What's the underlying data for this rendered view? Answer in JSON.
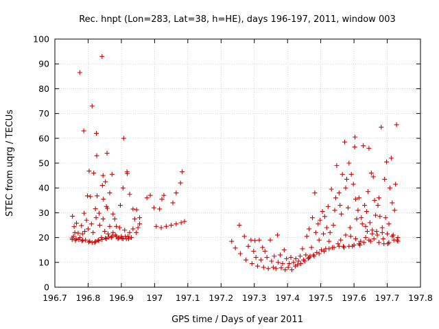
{
  "chart_data": {
    "type": "scatter",
    "title": "Rec. hnpt (Lon=283, Lat=38, h=HE), days 196-197, 2011, window 003",
    "xlabel": "GPS time / Days of year 2011",
    "ylabel": "STEC from uqrg / TECUs",
    "xlim": [
      196.7,
      197.8
    ],
    "ylim": [
      0,
      100
    ],
    "xticks": [
      "196.7",
      "196.8",
      "196.9",
      "197",
      "197.1",
      "197.2",
      "197.3",
      "197.4",
      "197.5",
      "197.6",
      "197.7",
      "197.8"
    ],
    "yticks": [
      "0",
      "10",
      "20",
      "30",
      "40",
      "50",
      "60",
      "70",
      "80",
      "90",
      "100"
    ],
    "grid": true,
    "marker": "+",
    "color": "#cc0000",
    "series": [
      {
        "points": [
          [
            196.753,
            28.6
          ],
          [
            196.758,
            24.4
          ],
          [
            196.765,
            25.8
          ],
          [
            196.775,
            86.5
          ],
          [
            196.783,
            21.5
          ],
          [
            196.787,
            63.0
          ],
          [
            196.788,
            29.8
          ],
          [
            196.798,
            36.8
          ],
          [
            196.803,
            46.8
          ],
          [
            196.807,
            36.5
          ],
          [
            196.812,
            73.0
          ],
          [
            196.817,
            46.0
          ],
          [
            196.822,
            31.6
          ],
          [
            196.825,
            62.0
          ],
          [
            196.826,
            53.0
          ],
          [
            196.827,
            36.8
          ],
          [
            196.833,
            29.8
          ],
          [
            196.842,
            93.0
          ],
          [
            196.843,
            41.0
          ],
          [
            196.845,
            45.0
          ],
          [
            196.846,
            35.5
          ],
          [
            196.852,
            42.5
          ],
          [
            196.855,
            32.5
          ],
          [
            196.857,
            54.0
          ],
          [
            196.858,
            31.8
          ],
          [
            196.865,
            38.0
          ],
          [
            196.872,
            45.5
          ],
          [
            196.875,
            29.5
          ],
          [
            196.885,
            24.5
          ],
          [
            196.897,
            33.0
          ],
          [
            196.905,
            40.0
          ],
          [
            196.907,
            60.0
          ],
          [
            196.917,
            46.5
          ],
          [
            196.918,
            45.8
          ],
          [
            196.925,
            37.5
          ],
          [
            196.935,
            31.5
          ],
          [
            196.946,
            31.2
          ],
          [
            196.955,
            28.0
          ],
          [
            196.977,
            36.0
          ],
          [
            196.987,
            37.0
          ],
          [
            196.998,
            32.0
          ],
          [
            197.015,
            31.5
          ],
          [
            197.022,
            35.5
          ],
          [
            197.028,
            37.0
          ],
          [
            197.055,
            34.0
          ],
          [
            197.065,
            38.0
          ],
          [
            197.078,
            42.0
          ],
          [
            197.083,
            46.5
          ],
          [
            196.752,
            19.2
          ],
          [
            196.756,
            20.5
          ],
          [
            196.76,
            22.0
          ],
          [
            196.764,
            19.5
          ],
          [
            196.77,
            21.8
          ],
          [
            196.775,
            20.0
          ],
          [
            196.78,
            24.8
          ],
          [
            196.784,
            19.0
          ],
          [
            196.79,
            22.5
          ],
          [
            196.795,
            27.0
          ],
          [
            196.8,
            23.5
          ],
          [
            196.805,
            18.5
          ],
          [
            196.81,
            25.5
          ],
          [
            196.815,
            22.0
          ],
          [
            196.82,
            18.0
          ],
          [
            196.824,
            28.0
          ],
          [
            196.83,
            19.0
          ],
          [
            196.835,
            25.0
          ],
          [
            196.84,
            20.0
          ],
          [
            196.845,
            27.5
          ],
          [
            196.85,
            22.5
          ],
          [
            196.855,
            19.5
          ],
          [
            196.86,
            21.5
          ],
          [
            196.865,
            24.5
          ],
          [
            196.87,
            20.0
          ],
          [
            196.875,
            22.0
          ],
          [
            196.88,
            27.5
          ],
          [
            196.885,
            20.5
          ],
          [
            196.89,
            19.5
          ],
          [
            196.895,
            24.0
          ],
          [
            196.9,
            20.5
          ],
          [
            196.905,
            19.5
          ],
          [
            196.91,
            23.0
          ],
          [
            196.915,
            19.5
          ],
          [
            196.92,
            20.5
          ],
          [
            196.925,
            22.0
          ],
          [
            196.93,
            20.0
          ],
          [
            196.935,
            23.5
          ],
          [
            196.94,
            27.5
          ],
          [
            196.945,
            22.0
          ],
          [
            196.95,
            24.0
          ],
          [
            196.955,
            25.5
          ],
          [
            197.005,
            24.5
          ],
          [
            197.02,
            24.0
          ],
          [
            197.035,
            24.5
          ],
          [
            197.05,
            25.0
          ],
          [
            197.065,
            25.5
          ],
          [
            197.08,
            26.0
          ],
          [
            197.09,
            26.5
          ],
          [
            196.752,
            19.8
          ],
          [
            196.762,
            18.8
          ],
          [
            196.772,
            19.2
          ],
          [
            196.782,
            18.6
          ],
          [
            196.792,
            19.0
          ],
          [
            196.802,
            18.2
          ],
          [
            196.812,
            18.0
          ],
          [
            196.822,
            18.4
          ],
          [
            196.832,
            18.7
          ],
          [
            196.842,
            19.2
          ],
          [
            196.852,
            19.8
          ],
          [
            196.862,
            20.2
          ],
          [
            196.872,
            20.6
          ],
          [
            196.882,
            21.0
          ],
          [
            196.892,
            20.0
          ],
          [
            196.902,
            19.7
          ],
          [
            196.912,
            20.4
          ],
          [
            196.922,
            19.5
          ],
          [
            197.232,
            18.5
          ],
          [
            197.243,
            15.8
          ],
          [
            197.255,
            25.0
          ],
          [
            197.258,
            13.5
          ],
          [
            197.27,
            20.5
          ],
          [
            197.275,
            11.0
          ],
          [
            197.282,
            16.5
          ],
          [
            197.29,
            19.0
          ],
          [
            197.293,
            9.5
          ],
          [
            197.298,
            14.5
          ],
          [
            197.302,
            18.8
          ],
          [
            197.305,
            12.0
          ],
          [
            197.31,
            8.5
          ],
          [
            197.315,
            19.0
          ],
          [
            197.32,
            11.0
          ],
          [
            197.325,
            16.0
          ],
          [
            197.328,
            8.0
          ],
          [
            197.332,
            14.5
          ],
          [
            197.338,
            12.0
          ],
          [
            197.342,
            7.5
          ],
          [
            197.348,
            19.0
          ],
          [
            197.352,
            10.5
          ],
          [
            197.357,
            8.0
          ],
          [
            197.36,
            12.5
          ],
          [
            197.365,
            7.5
          ],
          [
            197.37,
            21.0
          ],
          [
            197.372,
            10.0
          ],
          [
            197.378,
            13.0
          ],
          [
            197.381,
            7.8
          ],
          [
            197.385,
            9.5
          ],
          [
            197.39,
            15.0
          ],
          [
            197.393,
            7.0
          ],
          [
            197.397,
            11.5
          ],
          [
            197.402,
            8.0
          ],
          [
            197.405,
            9.5
          ],
          [
            197.41,
            12.0
          ],
          [
            197.413,
            7.0
          ],
          [
            197.418,
            10.0
          ],
          [
            197.423,
            8.5
          ],
          [
            197.425,
            11.5
          ],
          [
            197.43,
            9.0
          ],
          [
            197.433,
            10.5
          ],
          [
            197.438,
            12.5
          ],
          [
            197.44,
            9.5
          ],
          [
            197.445,
            15.5
          ],
          [
            197.448,
            11.0
          ],
          [
            197.452,
            10.5
          ],
          [
            197.455,
            13.0
          ],
          [
            197.458,
            20.5
          ],
          [
            197.462,
            11.5
          ],
          [
            197.465,
            23.5
          ],
          [
            197.468,
            12.5
          ],
          [
            197.472,
            16.0
          ],
          [
            197.475,
            28.0
          ],
          [
            197.478,
            13.0
          ],
          [
            197.482,
            38.0
          ],
          [
            197.485,
            22.0
          ],
          [
            197.488,
            14.0
          ],
          [
            197.492,
            25.5
          ],
          [
            197.495,
            19.0
          ],
          [
            197.498,
            27.0
          ],
          [
            197.502,
            15.0
          ],
          [
            197.505,
            30.5
          ],
          [
            197.508,
            21.5
          ],
          [
            197.512,
            28.5
          ],
          [
            197.515,
            15.5
          ],
          [
            197.518,
            24.0
          ],
          [
            197.522,
            32.5
          ],
          [
            197.525,
            18.5
          ],
          [
            197.528,
            22.0
          ],
          [
            197.532,
            39.5
          ],
          [
            197.535,
            16.0
          ],
          [
            197.538,
            25.0
          ],
          [
            197.542,
            31.0
          ],
          [
            197.545,
            36.0
          ],
          [
            197.548,
            49.0
          ],
          [
            197.552,
            17.5
          ],
          [
            197.555,
            38.0
          ],
          [
            197.558,
            33.0
          ],
          [
            197.562,
            29.5
          ],
          [
            197.565,
            45.5
          ],
          [
            197.568,
            16.5
          ],
          [
            197.572,
            58.5
          ],
          [
            197.575,
            40.0
          ],
          [
            197.578,
            43.5
          ],
          [
            197.582,
            32.0
          ],
          [
            197.585,
            50.0
          ],
          [
            197.588,
            24.0
          ],
          [
            197.592,
            45.5
          ],
          [
            197.595,
            16.5
          ],
          [
            197.598,
            41.5
          ],
          [
            197.602,
            56.5
          ],
          [
            197.603,
            60.5
          ],
          [
            197.605,
            35.5
          ],
          [
            197.608,
            27.5
          ],
          [
            197.612,
            31.0
          ],
          [
            197.615,
            36.0
          ],
          [
            197.618,
            17.0
          ],
          [
            197.622,
            28.0
          ],
          [
            197.625,
            25.5
          ],
          [
            197.628,
            57.0
          ],
          [
            197.632,
            33.0
          ],
          [
            197.635,
            24.5
          ],
          [
            197.638,
            30.5
          ],
          [
            197.642,
            38.5
          ],
          [
            197.645,
            56.0
          ],
          [
            197.648,
            26.0
          ],
          [
            197.652,
            46.0
          ],
          [
            197.655,
            21.5
          ],
          [
            197.658,
            44.5
          ],
          [
            197.662,
            35.0
          ],
          [
            197.665,
            29.0
          ],
          [
            197.668,
            22.5
          ],
          [
            197.672,
            33.0
          ],
          [
            197.675,
            36.0
          ],
          [
            197.678,
            28.5
          ],
          [
            197.682,
            64.5
          ],
          [
            197.685,
            24.0
          ],
          [
            197.688,
            19.5
          ],
          [
            197.692,
            43.5
          ],
          [
            197.695,
            28.0
          ],
          [
            197.698,
            50.5
          ],
          [
            197.702,
            17.5
          ],
          [
            197.705,
            25.5
          ],
          [
            197.708,
            40.0
          ],
          [
            197.712,
            52.0
          ],
          [
            197.715,
            34.0
          ],
          [
            197.718,
            21.0
          ],
          [
            197.722,
            31.0
          ],
          [
            197.725,
            41.5
          ],
          [
            197.728,
            65.5
          ],
          [
            197.732,
            18.5
          ],
          [
            197.465,
            12.0
          ],
          [
            197.48,
            12.5
          ],
          [
            197.495,
            13.5
          ],
          [
            197.51,
            14.5
          ],
          [
            197.525,
            15.5
          ],
          [
            197.54,
            16.0
          ],
          [
            197.555,
            16.5
          ],
          [
            197.57,
            16.0
          ],
          [
            197.585,
            16.5
          ],
          [
            197.6,
            17.0
          ],
          [
            197.615,
            17.5
          ],
          [
            197.63,
            18.0
          ],
          [
            197.645,
            19.0
          ],
          [
            197.66,
            19.5
          ],
          [
            197.675,
            18.0
          ],
          [
            197.69,
            17.5
          ],
          [
            197.705,
            18.0
          ],
          [
            197.72,
            19.0
          ],
          [
            197.732,
            20.0
          ],
          [
            197.64,
            22.5
          ],
          [
            197.655,
            23.0
          ],
          [
            197.67,
            21.0
          ],
          [
            197.685,
            22.0
          ],
          [
            197.7,
            21.5
          ],
          [
            197.715,
            20.5
          ],
          [
            197.73,
            19.0
          ],
          [
            197.56,
            19.0
          ],
          [
            197.575,
            21.0
          ],
          [
            197.59,
            20.5
          ],
          [
            197.605,
            19.5
          ],
          [
            197.62,
            18.5
          ],
          [
            197.635,
            20.0
          ],
          [
            197.65,
            18.5
          ]
        ]
      }
    ]
  }
}
